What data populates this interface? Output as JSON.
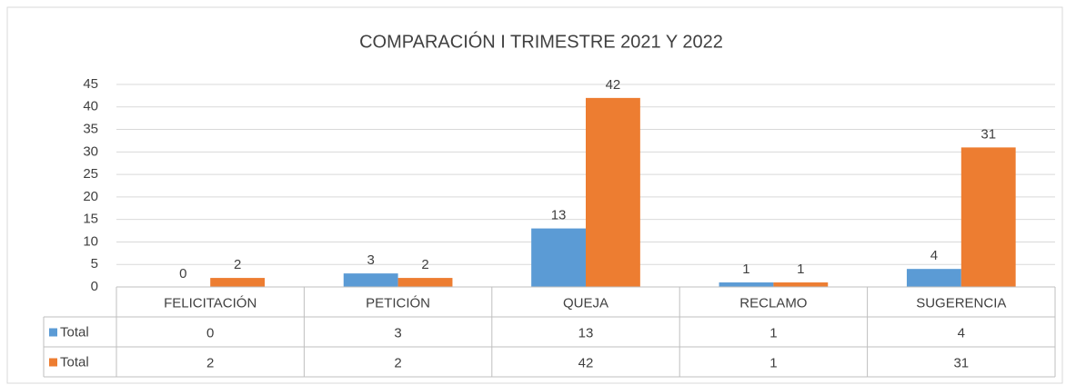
{
  "chart_data": {
    "type": "bar",
    "title": "COMPARACIÓN I TRIMESTRE 2021 Y 2022",
    "categories": [
      "FELICITACIÓN",
      "PETICIÓN",
      "QUEJA",
      "RECLAMO",
      "SUGERENCIA"
    ],
    "series": [
      {
        "name": "Total",
        "color": "#5b9bd5",
        "values": [
          0,
          3,
          13,
          1,
          4
        ]
      },
      {
        "name": "Total",
        "color": "#ed7d31",
        "values": [
          2,
          2,
          42,
          1,
          31
        ]
      }
    ],
    "ylim": [
      0,
      45
    ],
    "yticks": [
      0,
      5,
      10,
      15,
      20,
      25,
      30,
      35,
      40,
      45
    ],
    "grid": true,
    "data_table": true
  }
}
